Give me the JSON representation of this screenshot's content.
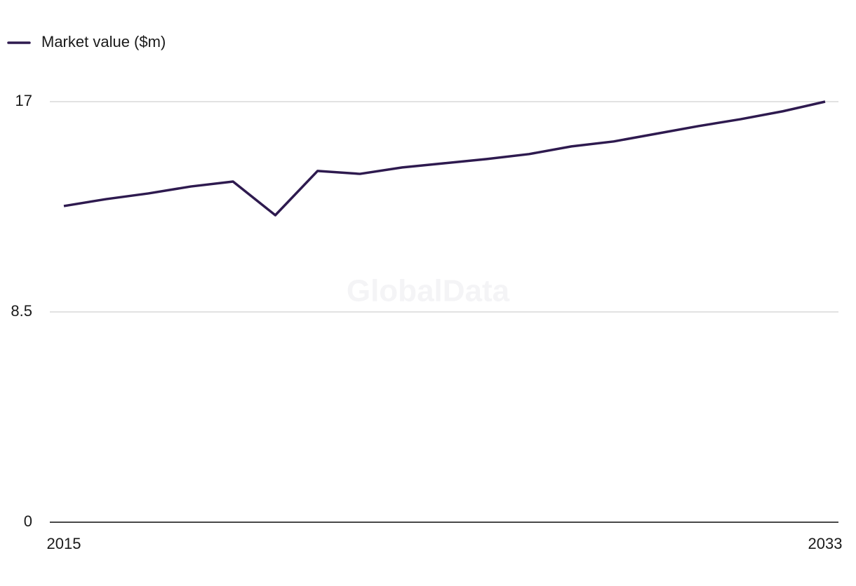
{
  "chart_data": {
    "type": "line",
    "watermark": "GlobalData",
    "x": [
      2015,
      2016,
      2017,
      2018,
      2019,
      2020,
      2021,
      2022,
      2023,
      2024,
      2025,
      2026,
      2027,
      2028,
      2029,
      2030,
      2031,
      2032,
      2033
    ],
    "series": [
      {
        "name": "Market value ($m)",
        "color": "#2e1a4f",
        "values": [
          12.78,
          13.06,
          13.29,
          13.57,
          13.77,
          12.41,
          14.2,
          14.08,
          14.34,
          14.51,
          14.68,
          14.88,
          15.19,
          15.39,
          15.7,
          16.01,
          16.29,
          16.61,
          17.0
        ]
      }
    ],
    "xlim": [
      2015,
      2033
    ],
    "xticks": [
      2015,
      2033
    ],
    "ylim": [
      0,
      17
    ],
    "yticks": [
      0,
      8.5,
      17
    ],
    "grid": true,
    "legend": "top-left"
  }
}
